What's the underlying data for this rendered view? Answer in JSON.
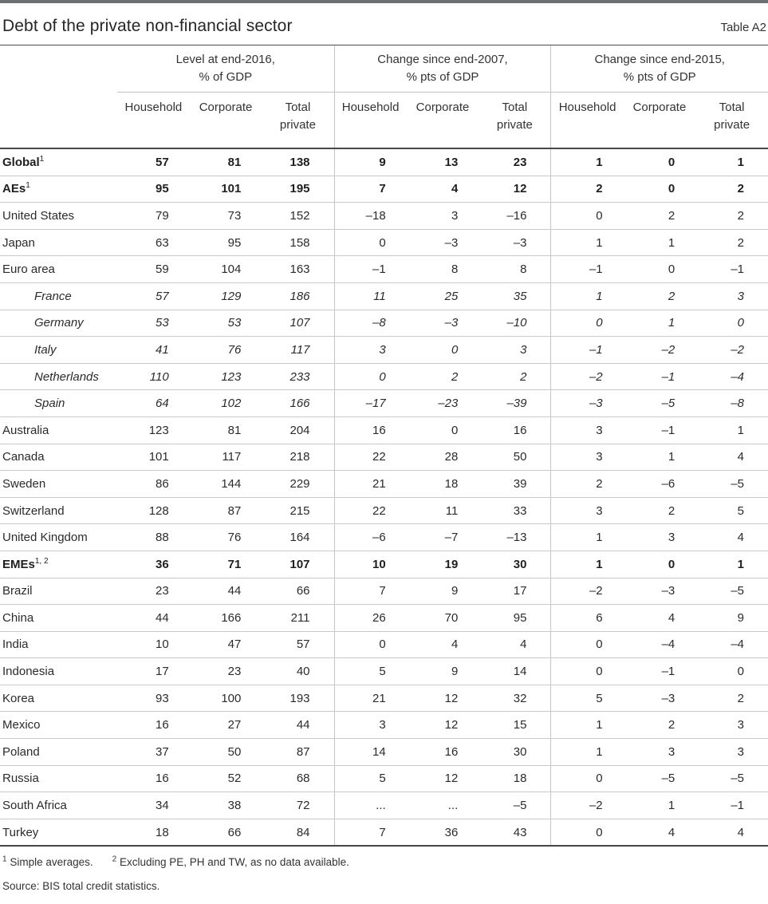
{
  "header": {
    "title": "Debt of the private non-financial sector",
    "table_label": "Table A2"
  },
  "table": {
    "col_groups": [
      {
        "title_line1": "Level at end-2016,",
        "title_line2": "% of GDP"
      },
      {
        "title_line1": "Change since end-2007,",
        "title_line2": "% pts of GDP"
      },
      {
        "title_line1": "Change since end-2015,",
        "title_line2": "% pts of GDP"
      }
    ],
    "sub_columns": [
      "Household",
      "Corporate",
      "Total private"
    ],
    "rows": [
      {
        "label": "Global",
        "sup": "1",
        "style": "bold",
        "values": [
          "57",
          "81",
          "138",
          "9",
          "13",
          "23",
          "1",
          "0",
          "1"
        ]
      },
      {
        "label": "AEs",
        "sup": "1",
        "style": "bold",
        "values": [
          "95",
          "101",
          "195",
          "7",
          "4",
          "12",
          "2",
          "0",
          "2"
        ]
      },
      {
        "label": "United States",
        "style": "normal",
        "values": [
          "79",
          "73",
          "152",
          "–18",
          "3",
          "–16",
          "0",
          "2",
          "2"
        ]
      },
      {
        "label": "Japan",
        "style": "normal",
        "values": [
          "63",
          "95",
          "158",
          "0",
          "–3",
          "–3",
          "1",
          "1",
          "2"
        ]
      },
      {
        "label": "Euro area",
        "style": "normal",
        "values": [
          "59",
          "104",
          "163",
          "–1",
          "8",
          "8",
          "–1",
          "0",
          "–1"
        ]
      },
      {
        "label": "France",
        "style": "italic",
        "values": [
          "57",
          "129",
          "186",
          "11",
          "25",
          "35",
          "1",
          "2",
          "3"
        ]
      },
      {
        "label": "Germany",
        "style": "italic",
        "values": [
          "53",
          "53",
          "107",
          "–8",
          "–3",
          "–10",
          "0",
          "1",
          "0"
        ]
      },
      {
        "label": "Italy",
        "style": "italic",
        "values": [
          "41",
          "76",
          "117",
          "3",
          "0",
          "3",
          "–1",
          "–2",
          "–2"
        ]
      },
      {
        "label": "Netherlands",
        "style": "italic",
        "values": [
          "110",
          "123",
          "233",
          "0",
          "2",
          "2",
          "–2",
          "–1",
          "–4"
        ]
      },
      {
        "label": "Spain",
        "style": "italic",
        "values": [
          "64",
          "102",
          "166",
          "–17",
          "–23",
          "–39",
          "–3",
          "–5",
          "–8"
        ]
      },
      {
        "label": "Australia",
        "style": "normal",
        "values": [
          "123",
          "81",
          "204",
          "16",
          "0",
          "16",
          "3",
          "–1",
          "1"
        ]
      },
      {
        "label": "Canada",
        "style": "normal",
        "values": [
          "101",
          "117",
          "218",
          "22",
          "28",
          "50",
          "3",
          "1",
          "4"
        ]
      },
      {
        "label": "Sweden",
        "style": "normal",
        "values": [
          "86",
          "144",
          "229",
          "21",
          "18",
          "39",
          "2",
          "–6",
          "–5"
        ]
      },
      {
        "label": "Switzerland",
        "style": "normal",
        "values": [
          "128",
          "87",
          "215",
          "22",
          "11",
          "33",
          "3",
          "2",
          "5"
        ]
      },
      {
        "label": "United Kingdom",
        "style": "normal",
        "values": [
          "88",
          "76",
          "164",
          "–6",
          "–7",
          "–13",
          "1",
          "3",
          "4"
        ]
      },
      {
        "label": "EMEs",
        "sup": "1, 2",
        "style": "bold",
        "values": [
          "36",
          "71",
          "107",
          "10",
          "19",
          "30",
          "1",
          "0",
          "1"
        ]
      },
      {
        "label": "Brazil",
        "style": "normal",
        "values": [
          "23",
          "44",
          "66",
          "7",
          "9",
          "17",
          "–2",
          "–3",
          "–5"
        ]
      },
      {
        "label": "China",
        "style": "normal",
        "values": [
          "44",
          "166",
          "211",
          "26",
          "70",
          "95",
          "6",
          "4",
          "9"
        ]
      },
      {
        "label": "India",
        "style": "normal",
        "values": [
          "10",
          "47",
          "57",
          "0",
          "4",
          "4",
          "0",
          "–4",
          "–4"
        ]
      },
      {
        "label": "Indonesia",
        "style": "normal",
        "values": [
          "17",
          "23",
          "40",
          "5",
          "9",
          "14",
          "0",
          "–1",
          "0"
        ]
      },
      {
        "label": "Korea",
        "style": "normal",
        "values": [
          "93",
          "100",
          "193",
          "21",
          "12",
          "32",
          "5",
          "–3",
          "2"
        ]
      },
      {
        "label": "Mexico",
        "style": "normal",
        "values": [
          "16",
          "27",
          "44",
          "3",
          "12",
          "15",
          "1",
          "2",
          "3"
        ]
      },
      {
        "label": "Poland",
        "style": "normal",
        "values": [
          "37",
          "50",
          "87",
          "14",
          "16",
          "30",
          "1",
          "3",
          "3"
        ]
      },
      {
        "label": "Russia",
        "style": "normal",
        "values": [
          "16",
          "52",
          "68",
          "5",
          "12",
          "18",
          "0",
          "–5",
          "–5"
        ]
      },
      {
        "label": "South Africa",
        "style": "normal",
        "values": [
          "34",
          "38",
          "72",
          "...",
          "...",
          "–5",
          "–2",
          "1",
          "–1"
        ]
      },
      {
        "label": "Turkey",
        "style": "normal",
        "values": [
          "18",
          "66",
          "84",
          "7",
          "36",
          "43",
          "0",
          "4",
          "4"
        ]
      }
    ]
  },
  "footnotes": {
    "fn1_marker": "1",
    "fn1_text": "Simple averages.",
    "fn2_marker": "2",
    "fn2_text": "Excluding PE, PH and TW, as no data available.",
    "source": "Source: BIS total credit statistics."
  },
  "colors": {
    "bar_gray": "#6e6f72",
    "rule_dark": "#474747",
    "rule_light": "#c5c5c5",
    "text": "#2b2b2b"
  }
}
